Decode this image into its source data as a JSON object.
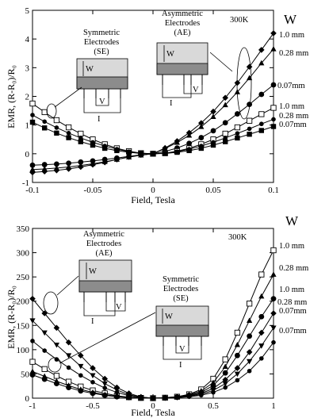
{
  "chart_data": [
    {
      "type": "line",
      "temperature": "300K",
      "xlabel": "Field, Tesla",
      "ylabel": "EMR, (R-R₀)/R₀",
      "xlim": [
        -0.1,
        0.1
      ],
      "ylim": [
        -1,
        5
      ],
      "xticks": [
        -0.1,
        -0.05,
        0,
        0.05,
        0.1
      ],
      "xtick_labels": [
        "-0.1",
        "-0.05",
        "0",
        "0.05",
        "0.1"
      ],
      "yticks": [
        -1,
        0,
        1,
        2,
        3,
        4,
        5
      ],
      "ytick_labels": [
        "-1",
        "0",
        "1",
        "2",
        "3",
        "4",
        "5"
      ],
      "width_header": "W",
      "ae_labels": [
        "1.0 mm",
        "0.28 mm",
        "0.07mm"
      ],
      "se_labels": [
        "1.0 mm",
        "0.28 mm",
        "0.07mm"
      ],
      "inset_se": [
        "Symmetric",
        "Electrodes",
        "(SE)"
      ],
      "inset_ae": [
        "Asymmetric",
        "Electrodes",
        "(AE)"
      ],
      "inset_letters": {
        "w": "W",
        "v": "V",
        "i": "I"
      },
      "series": [
        {
          "group": "AE",
          "marker": "diamond",
          "x": [
            -0.1,
            -0.09,
            -0.08,
            -0.07,
            -0.06,
            -0.05,
            -0.04,
            -0.03,
            -0.02,
            -0.01,
            0,
            0.01,
            0.02,
            0.03,
            0.04,
            0.05,
            0.06,
            0.07,
            0.08,
            0.09,
            0.1
          ],
          "values": [
            -0.65,
            -0.62,
            -0.58,
            -0.53,
            -0.46,
            -0.38,
            -0.3,
            -0.2,
            -0.11,
            -0.04,
            0,
            0.2,
            0.44,
            0.73,
            1.07,
            1.47,
            1.95,
            2.47,
            3.03,
            3.62,
            4.2
          ]
        },
        {
          "group": "AE",
          "marker": "triangle",
          "x": [
            -0.1,
            -0.09,
            -0.08,
            -0.07,
            -0.06,
            -0.05,
            -0.04,
            -0.03,
            -0.02,
            -0.01,
            0,
            0.01,
            0.02,
            0.03,
            0.04,
            0.05,
            0.06,
            0.07,
            0.08,
            0.09,
            0.1
          ],
          "values": [
            -0.55,
            -0.53,
            -0.5,
            -0.46,
            -0.41,
            -0.35,
            -0.28,
            -0.2,
            -0.12,
            -0.05,
            0,
            0.18,
            0.39,
            0.64,
            0.94,
            1.29,
            1.7,
            2.15,
            2.64,
            3.16,
            3.65
          ]
        },
        {
          "group": "AE",
          "marker": "circle",
          "x": [
            -0.1,
            -0.09,
            -0.08,
            -0.07,
            -0.06,
            -0.05,
            -0.04,
            -0.03,
            -0.02,
            -0.01,
            0,
            0.01,
            0.02,
            0.03,
            0.04,
            0.05,
            0.06,
            0.07,
            0.08,
            0.09,
            0.1
          ],
          "values": [
            -0.4,
            -0.38,
            -0.36,
            -0.33,
            -0.29,
            -0.25,
            -0.2,
            -0.15,
            -0.09,
            -0.04,
            0,
            0.08,
            0.2,
            0.36,
            0.56,
            0.8,
            1.08,
            1.39,
            1.72,
            2.07,
            2.4
          ]
        },
        {
          "group": "SE",
          "marker": "square-open",
          "x": [
            -0.1,
            -0.09,
            -0.08,
            -0.07,
            -0.06,
            -0.05,
            -0.04,
            -0.03,
            -0.02,
            -0.01,
            0,
            0.01,
            0.02,
            0.03,
            0.04,
            0.05,
            0.06,
            0.07,
            0.08,
            0.09,
            0.1
          ],
          "values": [
            1.75,
            1.45,
            1.17,
            0.92,
            0.7,
            0.5,
            0.33,
            0.19,
            0.09,
            0.02,
            0,
            0.02,
            0.09,
            0.19,
            0.33,
            0.5,
            0.7,
            0.92,
            1.15,
            1.38,
            1.6
          ]
        },
        {
          "group": "SE",
          "marker": "circle-small",
          "x": [
            -0.1,
            -0.09,
            -0.08,
            -0.07,
            -0.06,
            -0.05,
            -0.04,
            -0.03,
            -0.02,
            -0.01,
            0,
            0.01,
            0.02,
            0.03,
            0.04,
            0.05,
            0.06,
            0.07,
            0.08,
            0.09,
            0.1
          ],
          "values": [
            1.35,
            1.12,
            0.91,
            0.72,
            0.55,
            0.4,
            0.27,
            0.16,
            0.07,
            0.02,
            0,
            0.02,
            0.07,
            0.16,
            0.27,
            0.4,
            0.55,
            0.71,
            0.87,
            1.04,
            1.2
          ]
        },
        {
          "group": "SE",
          "marker": "square",
          "x": [
            -0.1,
            -0.09,
            -0.08,
            -0.07,
            -0.06,
            -0.05,
            -0.04,
            -0.03,
            -0.02,
            -0.01,
            0,
            0.01,
            0.02,
            0.03,
            0.04,
            0.05,
            0.06,
            0.07,
            0.08,
            0.09,
            0.1
          ],
          "values": [
            1.1,
            0.9,
            0.72,
            0.56,
            0.42,
            0.3,
            0.19,
            0.11,
            0.05,
            0.01,
            0,
            0.01,
            0.05,
            0.11,
            0.19,
            0.3,
            0.42,
            0.55,
            0.68,
            0.81,
            0.95
          ]
        }
      ]
    },
    {
      "type": "line",
      "temperature": "300K",
      "xlabel": "Field, Tesla",
      "ylabel": "EMR, (R-R₀)/R₀",
      "xlim": [
        -1,
        1
      ],
      "ylim": [
        0,
        350
      ],
      "xticks": [
        -1,
        -0.5,
        0,
        0.5,
        1
      ],
      "xtick_labels": [
        "-1",
        "-0.5",
        "0",
        "0.5",
        "1"
      ],
      "yticks": [
        0,
        50,
        100,
        150,
        200,
        250,
        300,
        350
      ],
      "ytick_labels": [
        "0",
        "50",
        "100",
        "150",
        "200",
        "250",
        "300",
        "350"
      ],
      "width_header": "W",
      "right_labels": [
        "1.0 mm",
        "0.28 mm",
        "1.0 mm",
        "0.28 mm",
        "0.07mm",
        "0.07mm"
      ],
      "inset_ae": [
        "Asymmetric",
        "Electrodes",
        "(AE)"
      ],
      "inset_se": [
        "Symmetric",
        "Electrodes",
        "(SE)"
      ],
      "inset_letters": {
        "w": "W",
        "v": "V",
        "i": "I"
      },
      "series": [
        {
          "group": "SE",
          "marker": "square-open",
          "x": [
            -1,
            -0.9,
            -0.8,
            -0.7,
            -0.6,
            -0.5,
            -0.4,
            -0.3,
            -0.2,
            -0.1,
            0,
            0.1,
            0.2,
            0.3,
            0.4,
            0.5,
            0.6,
            0.7,
            0.8,
            0.9,
            1
          ],
          "values": [
            75,
            60,
            46,
            34,
            24,
            16,
            10,
            5,
            2,
            0.5,
            0,
            1,
            3,
            8,
            18,
            40,
            80,
            135,
            195,
            255,
            305
          ]
        },
        {
          "group": "SE",
          "marker": "triangle",
          "x": [
            -1,
            -0.9,
            -0.8,
            -0.7,
            -0.6,
            -0.5,
            -0.4,
            -0.3,
            -0.2,
            -0.1,
            0,
            0.1,
            0.2,
            0.3,
            0.4,
            0.5,
            0.6,
            0.7,
            0.8,
            0.9,
            1
          ],
          "values": [
            55,
            45,
            35,
            26,
            18,
            12,
            7,
            4,
            1.5,
            0.4,
            0,
            1,
            3,
            7,
            15,
            32,
            65,
            110,
            160,
            210,
            255
          ]
        },
        {
          "group": "SE",
          "marker": "circle",
          "x": [
            -1,
            -0.9,
            -0.8,
            -0.7,
            -0.6,
            -0.5,
            -0.4,
            -0.3,
            -0.2,
            -0.1,
            0,
            0.1,
            0.2,
            0.3,
            0.4,
            0.5,
            0.6,
            0.7,
            0.8,
            0.9,
            1
          ],
          "values": [
            48,
            39,
            30,
            22,
            15,
            10,
            6,
            3,
            1.2,
            0.3,
            0,
            0.8,
            2.5,
            6,
            12,
            26,
            52,
            88,
            128,
            168,
            205
          ]
        },
        {
          "group": "AE",
          "marker": "diamond",
          "x": [
            -1,
            -0.9,
            -0.8,
            -0.7,
            -0.6,
            -0.5,
            -0.4,
            -0.3,
            -0.2,
            -0.1,
            0,
            0.1,
            0.2,
            0.3,
            0.4,
            0.5,
            0.6,
            0.7,
            0.8,
            0.9,
            1
          ],
          "values": [
            205,
            175,
            145,
            115,
            88,
            62,
            40,
            22,
            10,
            2.5,
            0,
            0.5,
            2,
            5,
            10,
            20,
            38,
            62,
            95,
            135,
            175
          ]
        },
        {
          "group": "AE",
          "marker": "triangle-down",
          "x": [
            -1,
            -0.9,
            -0.8,
            -0.7,
            -0.6,
            -0.5,
            -0.4,
            -0.3,
            -0.2,
            -0.1,
            0,
            0.1,
            0.2,
            0.3,
            0.4,
            0.5,
            0.6,
            0.7,
            0.8,
            0.9,
            1
          ],
          "values": [
            160,
            135,
            110,
            88,
            66,
            47,
            30,
            17,
            7,
            2,
            0,
            0.5,
            1.5,
            4,
            8,
            16,
            30,
            50,
            76,
            108,
            145
          ]
        },
        {
          "group": "AE",
          "marker": "circle-small",
          "x": [
            -1,
            -0.9,
            -0.8,
            -0.7,
            -0.6,
            -0.5,
            -0.4,
            -0.3,
            -0.2,
            -0.1,
            0,
            0.1,
            0.2,
            0.3,
            0.4,
            0.5,
            0.6,
            0.7,
            0.8,
            0.9,
            1
          ],
          "values": [
            118,
            98,
            80,
            63,
            47,
            33,
            21,
            12,
            5,
            1.2,
            0,
            0.3,
            1,
            3,
            6,
            12,
            22,
            37,
            56,
            82,
            115
          ]
        }
      ]
    }
  ]
}
